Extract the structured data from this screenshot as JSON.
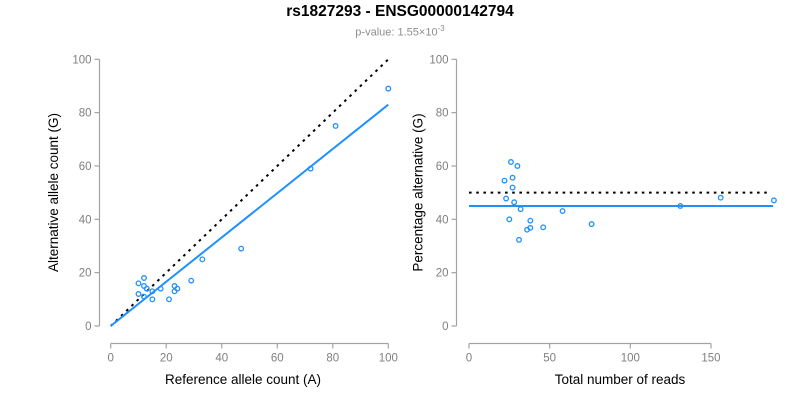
{
  "header": {
    "title": "rs1827293 - ENSG00000142794",
    "subtitle_base": "p-value: 1.55×10",
    "subtitle_exponent": "-3"
  },
  "colors": {
    "accent_blue": "#1E90FF",
    "line_black": "#000000",
    "axis_gray": "#a3a3a3",
    "tick_label_gray": "#7f7f7f",
    "axis_title_black": "#000000"
  },
  "chart_data": [
    {
      "type": "scatter",
      "title": "",
      "xlabel": "Reference allele count (A)",
      "ylabel": "Alternative allele count (G)",
      "xlim": [
        0,
        100
      ],
      "ylim": [
        0,
        100
      ],
      "xticks": [
        0,
        20,
        40,
        60,
        80,
        100
      ],
      "yticks": [
        0,
        20,
        40,
        60,
        80,
        100
      ],
      "grid": false,
      "legend": "none",
      "points": [
        [
          10,
          16
        ],
        [
          12,
          18
        ],
        [
          10,
          12
        ],
        [
          12,
          15
        ],
        [
          13,
          14
        ],
        [
          12,
          11
        ],
        [
          15,
          13
        ],
        [
          18,
          14
        ],
        [
          15,
          10
        ],
        [
          23,
          15
        ],
        [
          23,
          13
        ],
        [
          24,
          14
        ],
        [
          29,
          17
        ],
        [
          21,
          10
        ],
        [
          33,
          25
        ],
        [
          47,
          29
        ],
        [
          72,
          59
        ],
        [
          81,
          75
        ],
        [
          100,
          89
        ]
      ],
      "lines": [
        {
          "name": "identity-line",
          "style": "dotted",
          "color": "#000000",
          "x": [
            0,
            100
          ],
          "y": [
            0,
            100
          ]
        },
        {
          "name": "regression-line",
          "style": "solid",
          "color": "#1E90FF",
          "x": [
            0,
            100
          ],
          "y": [
            0,
            83
          ]
        }
      ]
    },
    {
      "type": "scatter",
      "title": "",
      "xlabel": "Total number of reads",
      "ylabel": "Percentage alternative (G)",
      "xlim": [
        0,
        189
      ],
      "ylim": [
        0,
        100
      ],
      "xticks": [
        0,
        50,
        100,
        150
      ],
      "yticks": [
        0,
        20,
        40,
        60,
        80,
        100
      ],
      "grid": false,
      "legend": "none",
      "points": [
        [
          26,
          61.5
        ],
        [
          30,
          60
        ],
        [
          22,
          54.5
        ],
        [
          27,
          55.6
        ],
        [
          27,
          51.9
        ],
        [
          23,
          47.8
        ],
        [
          28,
          46.4
        ],
        [
          32,
          43.8
        ],
        [
          25,
          40
        ],
        [
          38,
          39.5
        ],
        [
          36,
          36.1
        ],
        [
          38,
          36.8
        ],
        [
          46,
          37
        ],
        [
          31,
          32.3
        ],
        [
          58,
          43.1
        ],
        [
          76,
          38.2
        ],
        [
          131,
          45
        ],
        [
          156,
          48.1
        ],
        [
          189,
          47.1
        ]
      ],
      "lines": [
        {
          "name": "fifty-percent-line",
          "style": "dotted",
          "color": "#000000",
          "x": [
            0,
            185
          ],
          "y": [
            50,
            50
          ]
        },
        {
          "name": "mean-percentage-line",
          "style": "solid",
          "color": "#1E90FF",
          "x": [
            0,
            188.5
          ],
          "y": [
            45,
            45
          ]
        }
      ]
    }
  ]
}
